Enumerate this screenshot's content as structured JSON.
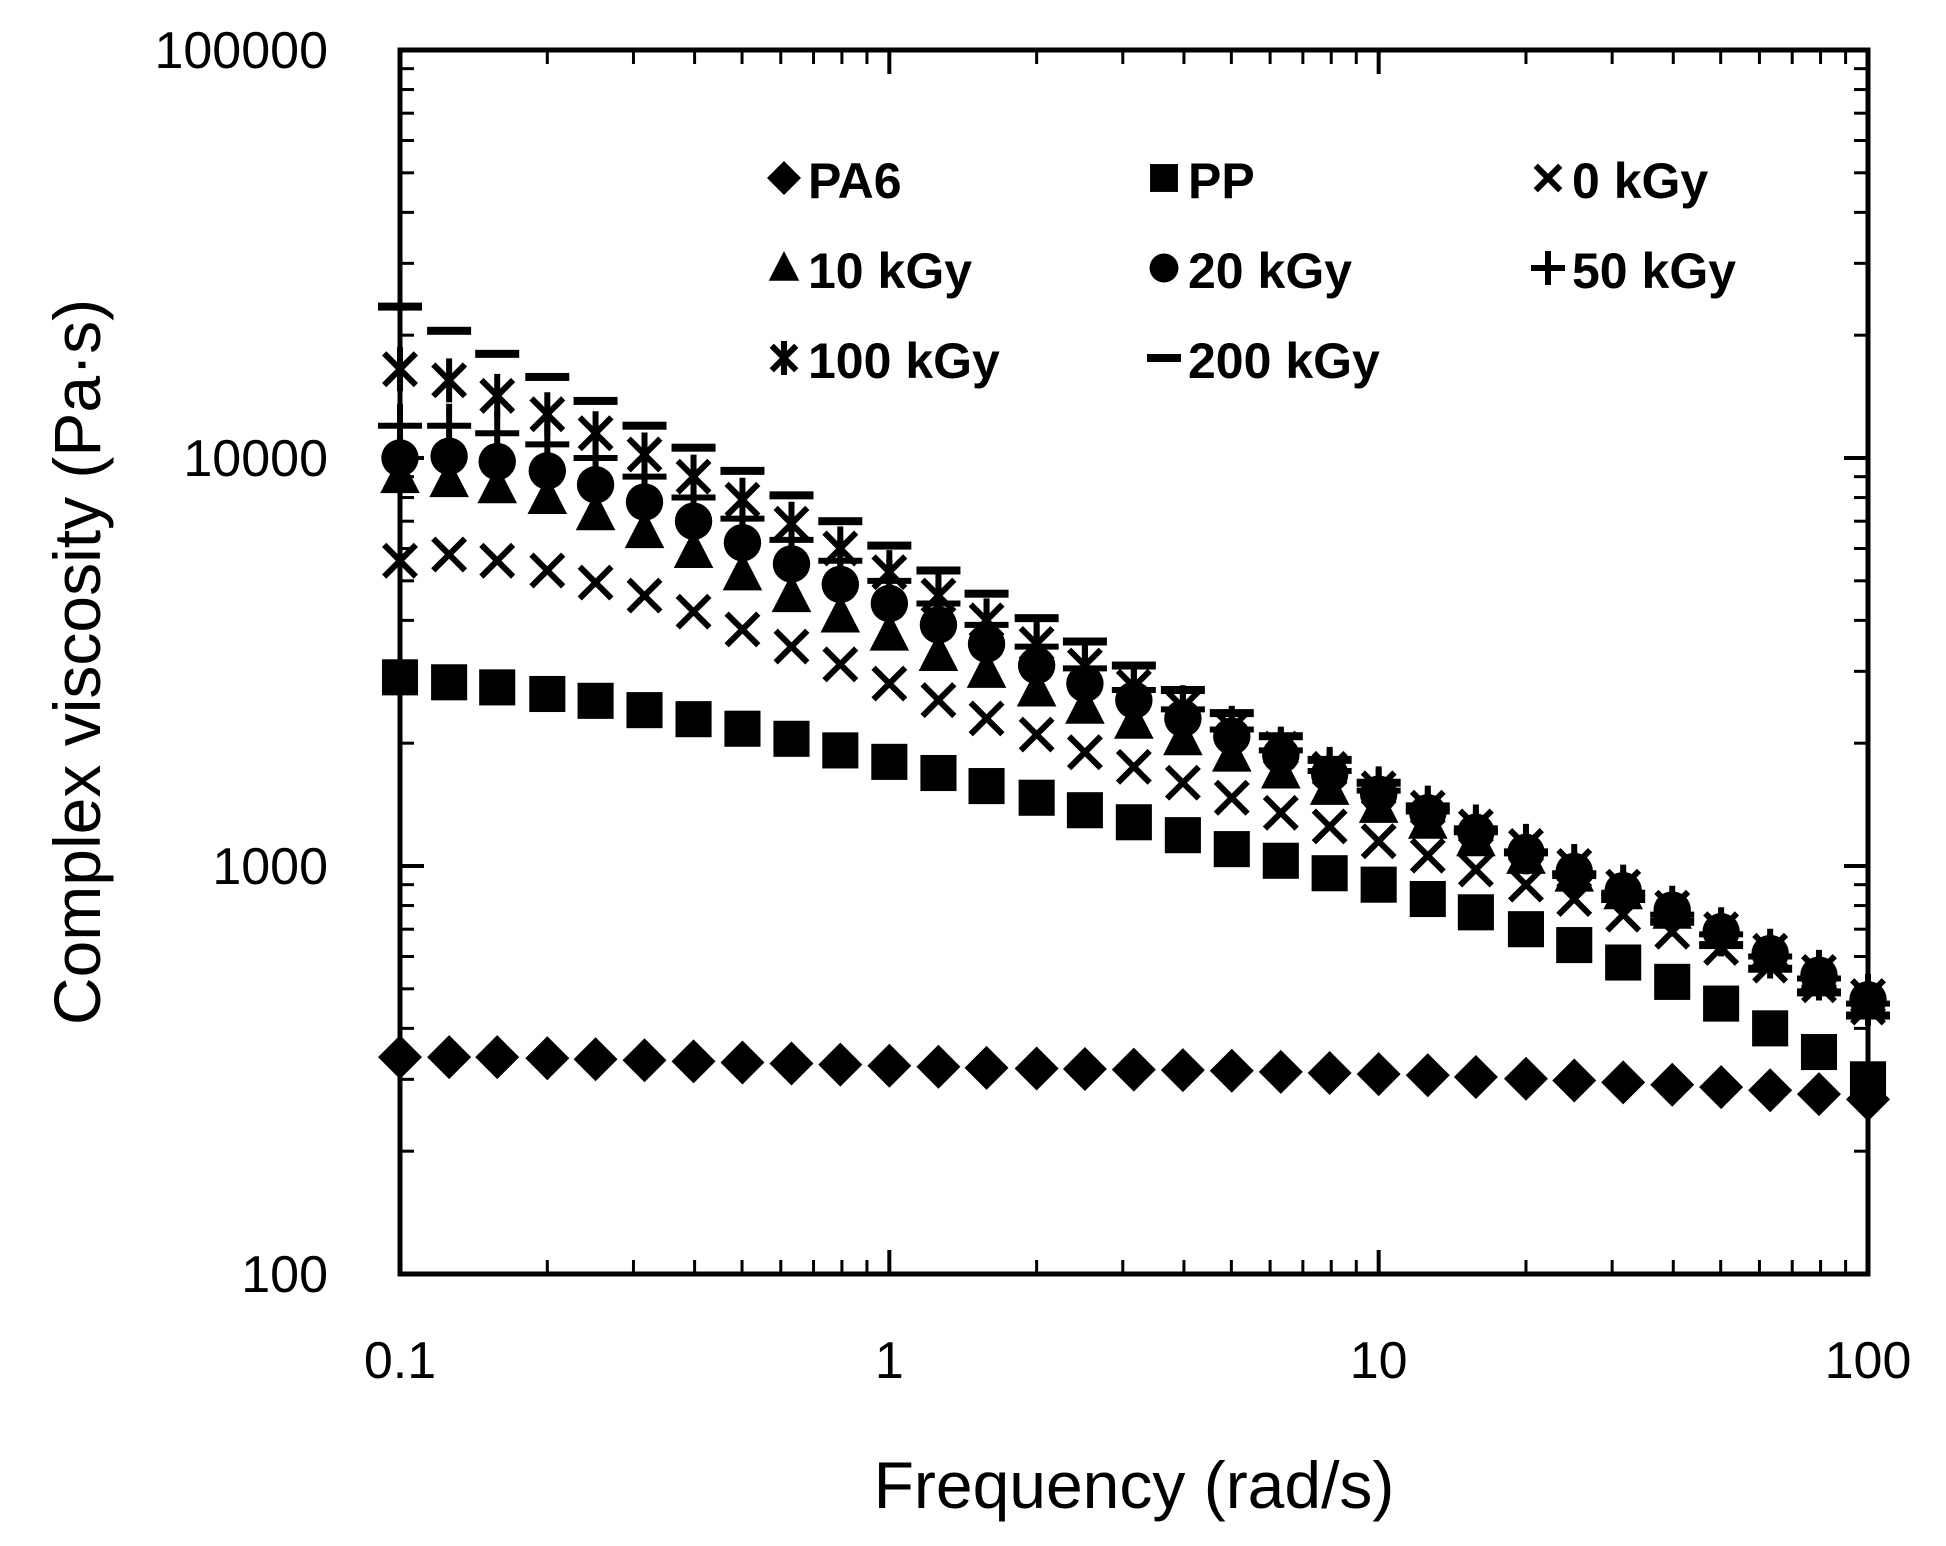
{
  "chart_data": {
    "type": "scatter",
    "title": "",
    "xlabel": "Frequency (rad/s)",
    "ylabel": "Complex viscosity (Pa·s)",
    "xscale": "log",
    "yscale": "log",
    "xlim": [
      0.1,
      100
    ],
    "ylim": [
      100,
      100000
    ],
    "xticks": [
      0.1,
      1,
      10,
      100
    ],
    "xtick_labels": [
      "0.1",
      "1",
      "10",
      "100"
    ],
    "yticks": [
      100,
      1000,
      10000,
      100000
    ],
    "ytick_labels": [
      "100",
      "1000",
      "10000",
      "100000"
    ],
    "grid": false,
    "legend_position": "top-right",
    "x": [
      0.1,
      0.126,
      0.158,
      0.2,
      0.251,
      0.316,
      0.398,
      0.501,
      0.631,
      0.794,
      1,
      1.26,
      1.58,
      2,
      2.51,
      3.16,
      3.98,
      5.01,
      6.31,
      7.94,
      10,
      12.6,
      15.8,
      20,
      25.1,
      31.6,
      39.8,
      50.1,
      63.1,
      79.4,
      100
    ],
    "series": [
      {
        "name": "PA6",
        "marker": "diamond",
        "values": [
          340,
          340,
          340,
          338,
          336,
          334,
          332,
          330,
          328,
          326,
          324,
          322,
          320,
          319,
          318,
          317,
          316,
          315,
          313,
          311,
          309,
          307,
          304,
          301,
          298,
          295,
          291,
          287,
          282,
          276,
          268
        ]
      },
      {
        "name": "PP",
        "marker": "square",
        "values": [
          2900,
          2820,
          2740,
          2640,
          2540,
          2410,
          2290,
          2170,
          2050,
          1920,
          1800,
          1690,
          1570,
          1470,
          1370,
          1280,
          1190,
          1100,
          1030,
          960,
          900,
          830,
          770,
          700,
          640,
          580,
          520,
          460,
          400,
          350,
          300
        ]
      },
      {
        "name": "0 kGy",
        "marker": "x",
        "values": [
          5600,
          5800,
          5600,
          5300,
          4950,
          4600,
          4200,
          3800,
          3450,
          3120,
          2800,
          2550,
          2300,
          2100,
          1900,
          1750,
          1600,
          1470,
          1350,
          1250,
          1150,
          1060,
          980,
          900,
          830,
          760,
          690,
          630,
          570,
          510,
          450
        ]
      },
      {
        "name": "10 kGy",
        "marker": "triangle",
        "values": [
          9000,
          8800,
          8500,
          8000,
          7300,
          6600,
          5900,
          5200,
          4600,
          4100,
          3700,
          3300,
          3000,
          2700,
          2450,
          2250,
          2050,
          1870,
          1700,
          1550,
          1400,
          1280,
          1160,
          1050,
          950,
          860,
          770,
          690,
          610,
          540,
          470
        ]
      },
      {
        "name": "20 kGy",
        "marker": "circle",
        "values": [
          10000,
          10100,
          9800,
          9300,
          8600,
          7800,
          7000,
          6200,
          5500,
          4900,
          4400,
          3900,
          3500,
          3100,
          2800,
          2550,
          2300,
          2080,
          1870,
          1680,
          1500,
          1350,
          1210,
          1080,
          970,
          870,
          780,
          690,
          610,
          540,
          470
        ]
      },
      {
        "name": "50 kGy",
        "marker": "plus",
        "values": [
          12000,
          12000,
          11500,
          10800,
          10000,
          9000,
          8000,
          7100,
          6300,
          5600,
          5000,
          4400,
          3900,
          3450,
          3050,
          2700,
          2420,
          2160,
          1920,
          1710,
          1530,
          1360,
          1210,
          1080,
          960,
          860,
          760,
          680,
          600,
          530,
          460
        ]
      },
      {
        "name": "100 kGy",
        "marker": "asterisk",
        "values": [
          16500,
          15500,
          14200,
          12800,
          11500,
          10200,
          9000,
          7900,
          6900,
          6000,
          5250,
          4600,
          4000,
          3500,
          3100,
          2750,
          2450,
          2180,
          1940,
          1730,
          1550,
          1390,
          1250,
          1120,
          1000,
          890,
          790,
          700,
          620,
          550,
          480
        ]
      },
      {
        "name": "200 kGy",
        "marker": "dash",
        "values": [
          23500,
          20500,
          18000,
          15800,
          13800,
          12000,
          10600,
          9300,
          8100,
          7000,
          6100,
          5300,
          4650,
          4050,
          3550,
          3100,
          2700,
          2370,
          2080,
          1820,
          1600,
          1400,
          1230,
          1080,
          950,
          830,
          730,
          640,
          560,
          490,
          430
        ]
      }
    ]
  }
}
